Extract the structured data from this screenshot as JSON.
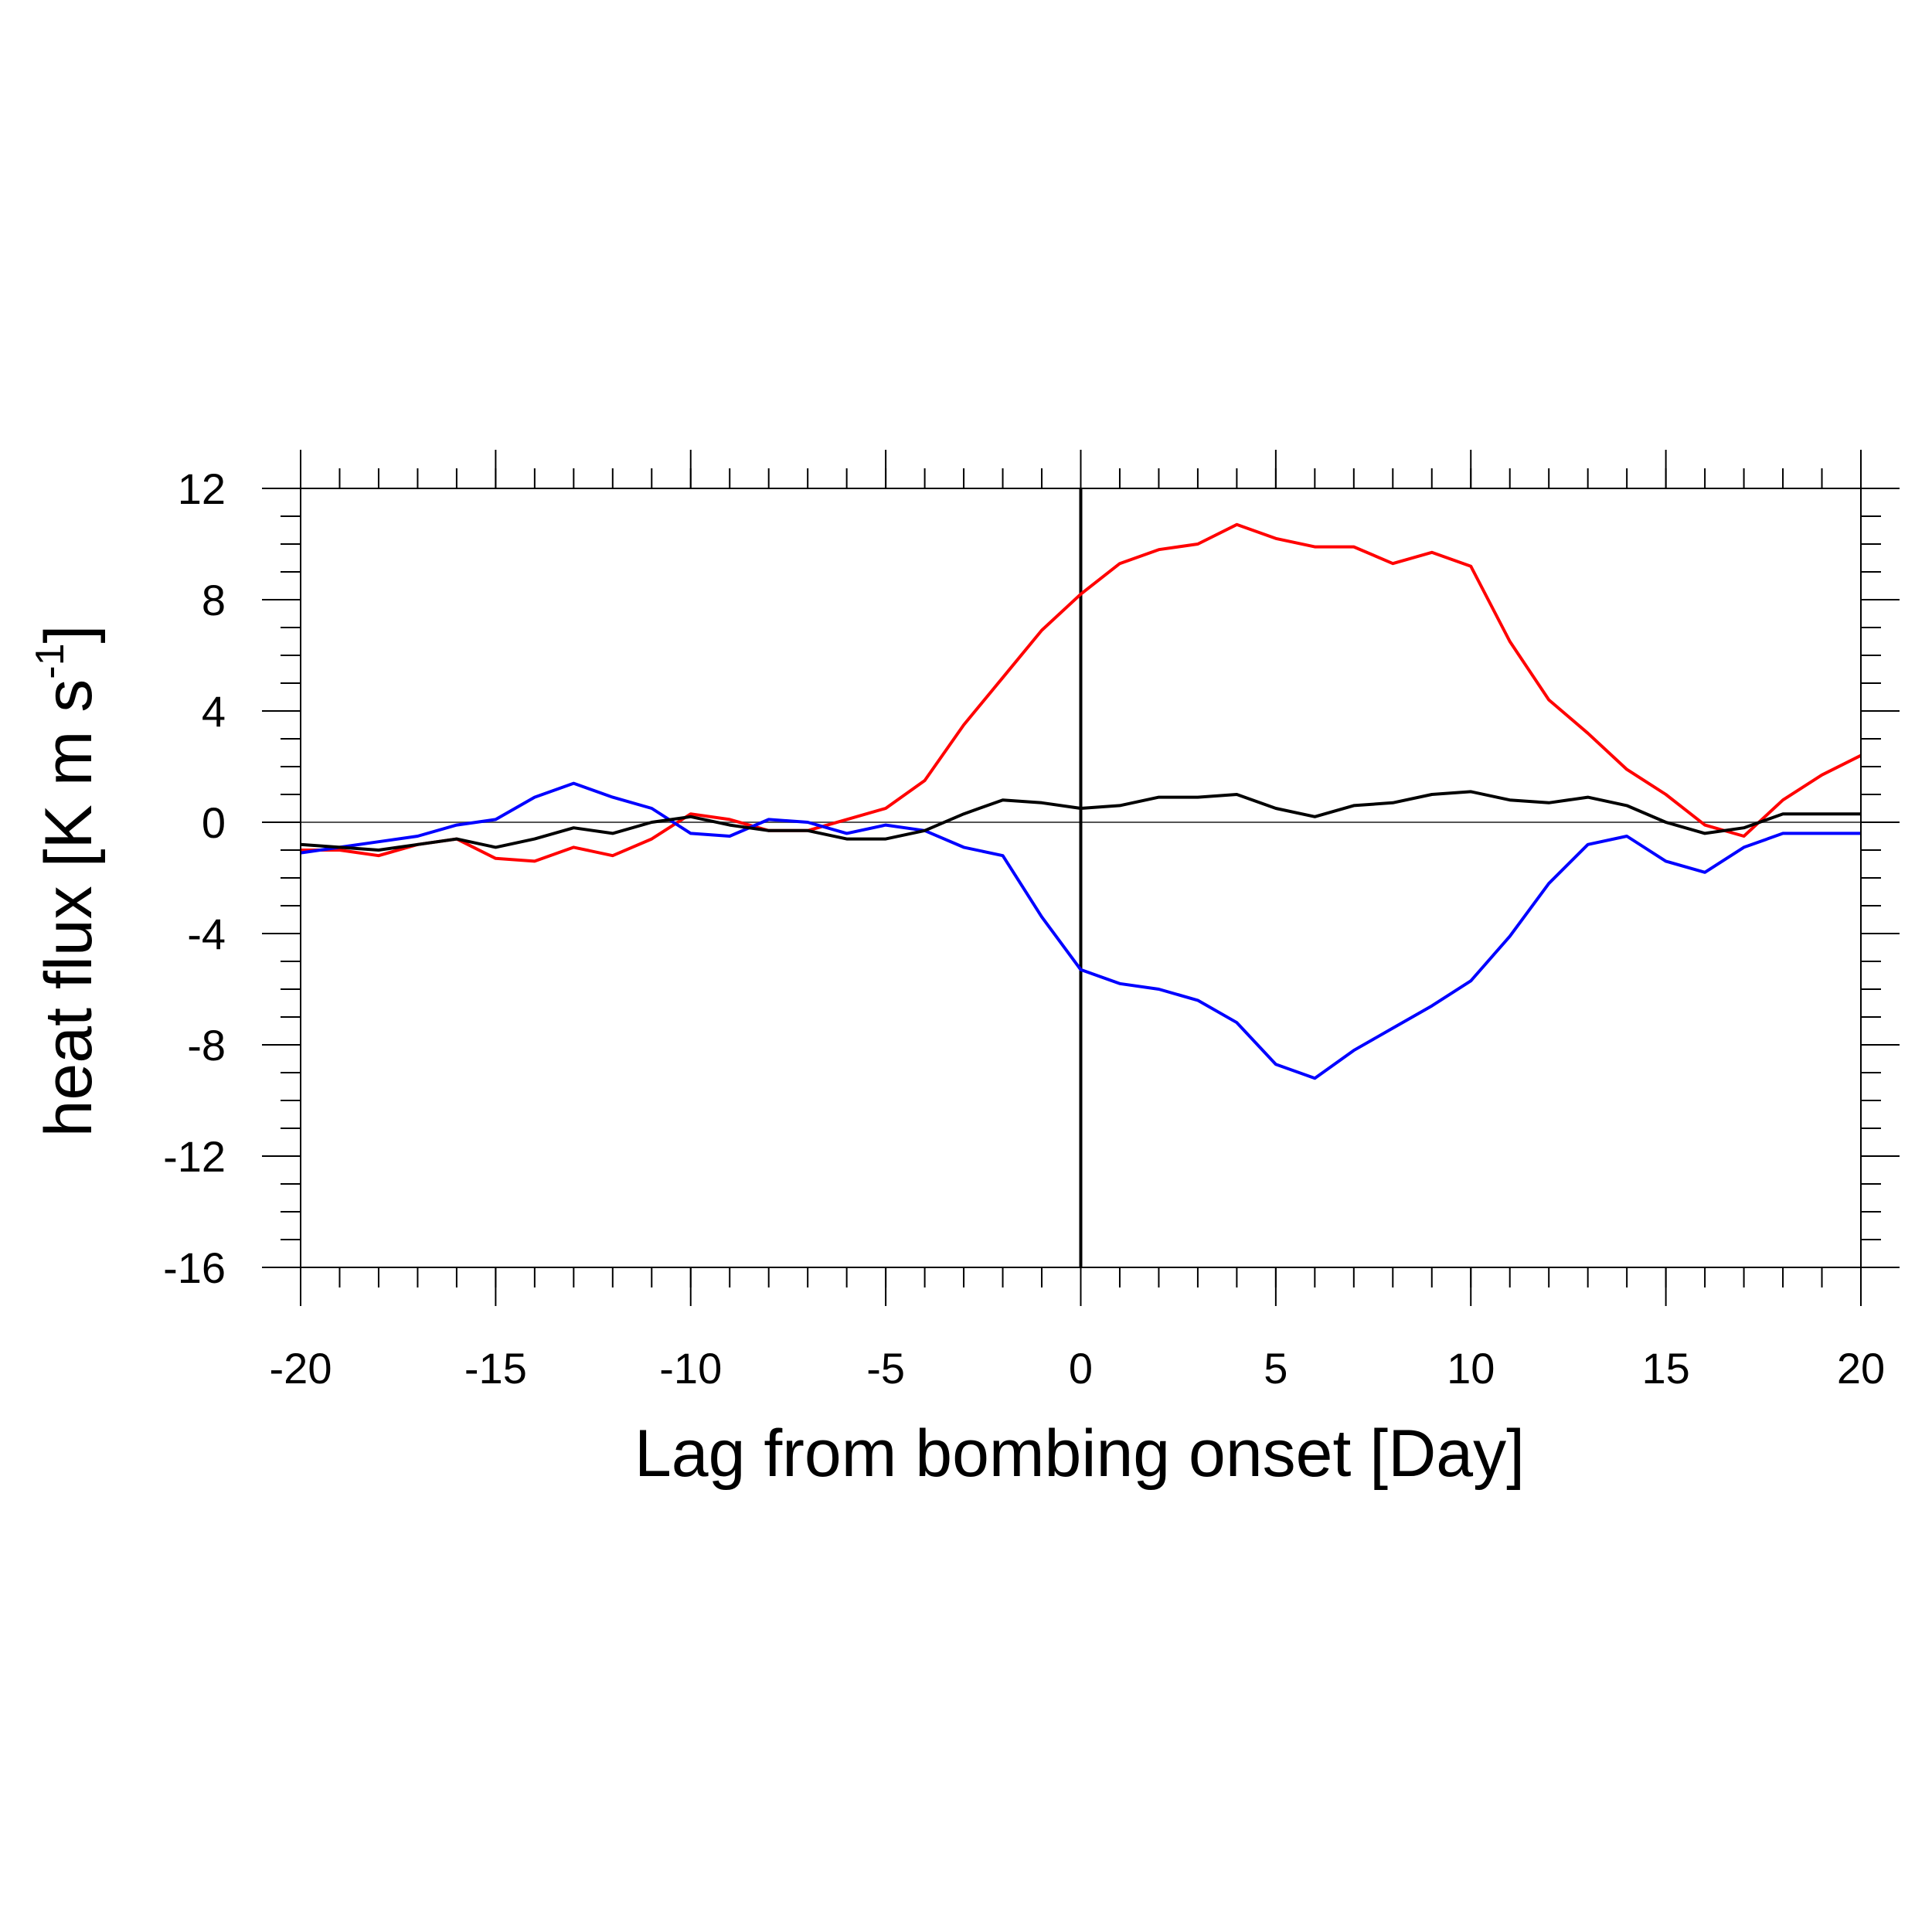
{
  "chart_data": {
    "type": "line",
    "xlabel": "Lag from bombing onset [Day]",
    "ylabel": {
      "base": "heat flux [K m s",
      "sup": "-1",
      "close": "]"
    },
    "xlim": [
      -20,
      20
    ],
    "ylim": [
      -16,
      12
    ],
    "xticks": [
      -20,
      -15,
      -10,
      -5,
      0,
      5,
      10,
      15,
      20
    ],
    "yticks": [
      12,
      8,
      4,
      0,
      -4,
      -8,
      -12,
      -16
    ],
    "x_minor_step": 1,
    "y_minor_step": 1,
    "zero_line": true,
    "vertical_line_x": 0,
    "grid": false,
    "x": [
      -20,
      -19,
      -18,
      -17,
      -16,
      -15,
      -14,
      -13,
      -12,
      -11,
      -10,
      -9,
      -8,
      -7,
      -6,
      -5,
      -4,
      -3,
      -2,
      -1,
      0,
      1,
      2,
      3,
      4,
      5,
      6,
      7,
      8,
      9,
      10,
      11,
      12,
      13,
      14,
      15,
      16,
      17,
      18,
      19,
      20
    ],
    "series": [
      {
        "color": "#ff0000",
        "values": [
          -1.0,
          -1.0,
          -1.2,
          -0.8,
          -0.6,
          -1.3,
          -1.4,
          -0.9,
          -1.2,
          -0.6,
          0.3,
          0.1,
          -0.3,
          -0.3,
          0.1,
          0.5,
          1.5,
          3.5,
          5.2,
          6.9,
          8.2,
          9.3,
          9.8,
          10.0,
          10.7,
          10.2,
          9.9,
          9.9,
          9.3,
          9.7,
          9.2,
          6.5,
          4.4,
          3.2,
          1.9,
          1.0,
          -0.1,
          -0.5,
          0.8,
          1.7,
          2.4
        ]
      },
      {
        "color": "#0000ff",
        "values": [
          -1.1,
          -0.9,
          -0.7,
          -0.5,
          -0.1,
          0.1,
          0.9,
          1.4,
          0.9,
          0.5,
          -0.4,
          -0.5,
          0.1,
          0.0,
          -0.4,
          -0.1,
          -0.3,
          -0.9,
          -1.2,
          -3.4,
          -5.3,
          -5.8,
          -6.0,
          -6.4,
          -7.2,
          -8.7,
          -9.2,
          -8.2,
          -7.4,
          -6.6,
          -5.7,
          -4.1,
          -2.2,
          -0.8,
          -0.5,
          -1.4,
          -1.8,
          -0.9,
          -0.4,
          -0.4,
          -0.4
        ]
      },
      {
        "color": "#000000",
        "values": [
          -0.8,
          -0.9,
          -1.0,
          -0.8,
          -0.6,
          -0.9,
          -0.6,
          -0.2,
          -0.4,
          0.0,
          0.2,
          -0.1,
          -0.3,
          -0.3,
          -0.6,
          -0.6,
          -0.3,
          0.3,
          0.8,
          0.7,
          0.5,
          0.6,
          0.9,
          0.9,
          1.0,
          0.5,
          0.2,
          0.6,
          0.7,
          1.0,
          1.1,
          0.8,
          0.7,
          0.9,
          0.6,
          0.0,
          -0.4,
          -0.2,
          0.3,
          0.3,
          0.3
        ]
      }
    ]
  }
}
